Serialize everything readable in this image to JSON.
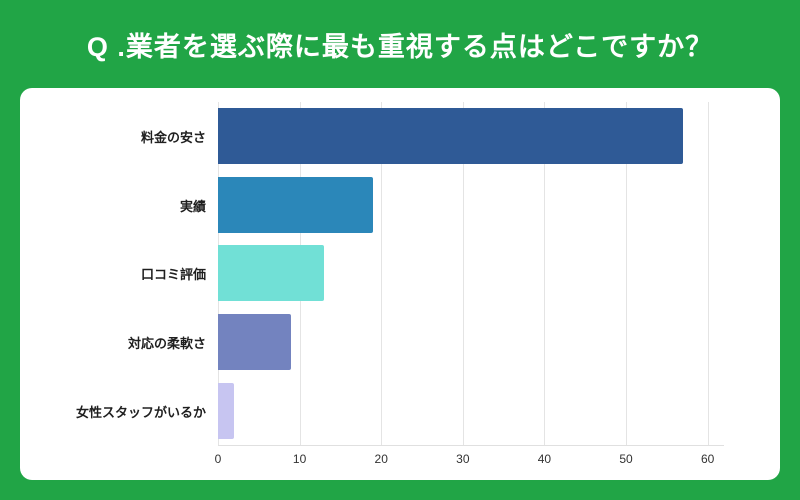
{
  "header": {
    "title": "Q .業者を選ぶ際に最も重視する点はどこですか？",
    "background_color": "#21A546",
    "text_color": "#FFFFFF"
  },
  "chart_data": {
    "type": "bar",
    "orientation": "horizontal",
    "title": "",
    "xlabel": "",
    "ylabel": "",
    "categories": [
      "料金の安さ",
      "実績",
      "口コミ評価",
      "対応の柔軟さ",
      "女性スタッフがいるか"
    ],
    "values": [
      57,
      19,
      13,
      9,
      2
    ],
    "bar_colors": [
      "#2F5A96",
      "#2B87B9",
      "#71E0D6",
      "#7383BF",
      "#C7C5F1"
    ],
    "x_ticks": [
      0,
      10,
      20,
      30,
      40,
      50,
      60
    ],
    "xlim": [
      0,
      62
    ],
    "grid": true,
    "legend": false,
    "plot_background": "#FFFFFF"
  }
}
